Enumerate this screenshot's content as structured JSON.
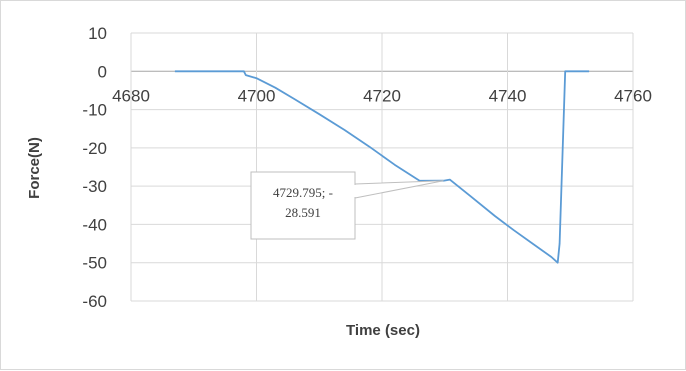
{
  "chart_data": {
    "type": "line",
    "xlabel": "Time (sec)",
    "ylabel": "Force(N)",
    "xlim": [
      4680,
      4760
    ],
    "ylim": [
      -60,
      10
    ],
    "x_ticks": [
      4680,
      4700,
      4720,
      4740,
      4760
    ],
    "y_ticks": [
      10,
      0,
      -10,
      -20,
      -30,
      -40,
      -50,
      -60
    ],
    "grid": true,
    "series_color": "#5b9bd5",
    "series": [
      {
        "x": [
          4687,
          4690,
          4694,
          4698,
          4698.3,
          4700,
          4703,
          4706,
          4710,
          4714,
          4718,
          4722,
          4726,
          4729.795,
          4730.8,
          4734,
          4738,
          4741,
          4744,
          4747,
          4748,
          4748.3,
          4748.7,
          4749.2,
          4750,
          4753
        ],
        "y": [
          0,
          0,
          0,
          0,
          -1,
          -1.8,
          -4.3,
          -7.2,
          -11.2,
          -15.3,
          -19.7,
          -24.4,
          -28.6,
          -28.591,
          -28.3,
          -32.5,
          -37.8,
          -41.5,
          -45,
          -48.5,
          -50,
          -45,
          -25,
          0,
          0,
          0
        ]
      }
    ],
    "annotations": [
      {
        "line1": "4729.795; -",
        "line2": "28.591",
        "x": 4729.795,
        "y": -28.591
      }
    ]
  }
}
